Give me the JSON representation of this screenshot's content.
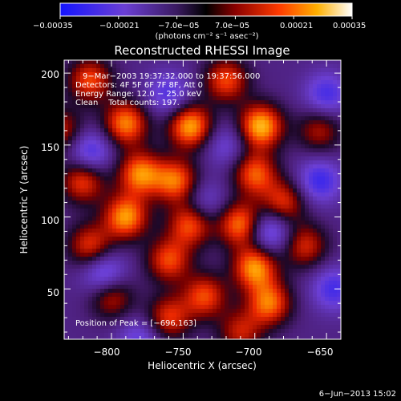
{
  "chart_data": {
    "type": "heatmap",
    "title": "Reconstructed RHESSI Image",
    "xlabel": "Heliocentric X (arcsec)",
    "ylabel": "Heliocentric Y (arcsec)",
    "xlim": [
      -833,
      -640
    ],
    "ylim": [
      15,
      209
    ],
    "x_ticks": [
      -800,
      -750,
      -700,
      -650
    ],
    "x_tick_labels": [
      "−800",
      "−750",
      "−700",
      "−650"
    ],
    "y_ticks": [
      50,
      100,
      150,
      200
    ],
    "y_tick_labels": [
      "50",
      "100",
      "150",
      "200"
    ],
    "colorbar": {
      "min": -0.00035,
      "max": 0.00035,
      "tick_labels": [
        "−0.00035",
        "−0.00021",
        "−7.0e−05",
        "7.0e−05",
        "0.00021",
        "0.00035"
      ],
      "unit_label": "(photons cm⁻² s⁻¹ asec⁻²)"
    },
    "annotations": [
      "9−Mar−2003 19:37:32.000 to 19:37:56.000",
      "Detectors: 4F 5F 6F 7F 8F, Att 0",
      "Energy Range: 12.0 − 25.0 keV",
      "Clean    Total counts: 197.",
      "Position of Peak = [−696,163]"
    ],
    "peaks": [
      {
        "x": -696,
        "y": 163,
        "v": 1.0
      },
      {
        "x": -745,
        "y": 163,
        "v": 0.95
      },
      {
        "x": -790,
        "y": 165,
        "v": 0.85
      },
      {
        "x": -815,
        "y": 195,
        "v": 0.7
      },
      {
        "x": -720,
        "y": 195,
        "v": 0.7
      },
      {
        "x": -780,
        "y": 130,
        "v": 0.85
      },
      {
        "x": -820,
        "y": 125,
        "v": 0.7
      },
      {
        "x": -755,
        "y": 125,
        "v": 0.8
      },
      {
        "x": -700,
        "y": 130,
        "v": 0.75
      },
      {
        "x": -680,
        "y": 110,
        "v": 0.65
      },
      {
        "x": -790,
        "y": 100,
        "v": 0.9
      },
      {
        "x": -745,
        "y": 95,
        "v": 0.75
      },
      {
        "x": -710,
        "y": 95,
        "v": 0.85
      },
      {
        "x": -815,
        "y": 80,
        "v": 0.65
      },
      {
        "x": -760,
        "y": 70,
        "v": 0.7
      },
      {
        "x": -700,
        "y": 65,
        "v": 0.9
      },
      {
        "x": -665,
        "y": 80,
        "v": 0.6
      },
      {
        "x": -735,
        "y": 45,
        "v": 0.7
      },
      {
        "x": -690,
        "y": 40,
        "v": 0.8
      },
      {
        "x": -800,
        "y": 45,
        "v": 0.6
      },
      {
        "x": -760,
        "y": 30,
        "v": 0.65
      },
      {
        "x": -710,
        "y": 20,
        "v": 0.55
      },
      {
        "x": -655,
        "y": 160,
        "v": 0.5
      },
      {
        "x": -835,
        "y": 160,
        "v": 0.55
      }
    ],
    "troughs": [
      {
        "x": -690,
        "y": 90,
        "v": -0.6
      },
      {
        "x": -655,
        "y": 125,
        "v": -0.55
      },
      {
        "x": -650,
        "y": 185,
        "v": -0.5
      },
      {
        "x": -815,
        "y": 145,
        "v": -0.55
      },
      {
        "x": -805,
        "y": 60,
        "v": -0.6
      },
      {
        "x": -760,
        "y": 185,
        "v": -0.45
      },
      {
        "x": -645,
        "y": 50,
        "v": -0.5
      },
      {
        "x": -780,
        "y": 15,
        "v": -0.4
      },
      {
        "x": -720,
        "y": 150,
        "v": -0.35
      },
      {
        "x": -735,
        "y": 110,
        "v": -0.35
      }
    ]
  },
  "footer": {
    "date": "6−Jun−2013 15:02"
  }
}
